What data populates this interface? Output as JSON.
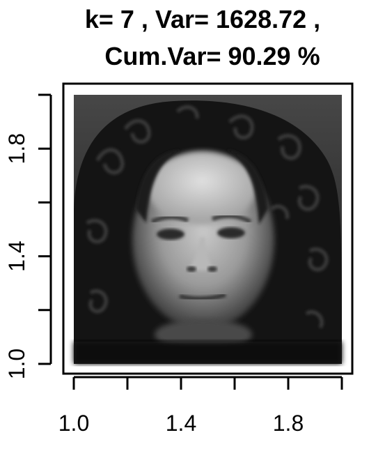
{
  "chart_data": {
    "type": "heatmap",
    "title_lines": [
      "k= 7 , Var= 1628.72 ,",
      "Cum.Var= 90.29 %"
    ],
    "xlim": [
      1.0,
      2.0
    ],
    "ylim": [
      1.0,
      2.0
    ],
    "x_ticks": [
      1.0,
      1.2,
      1.4,
      1.6,
      1.8,
      2.0
    ],
    "x_tick_labels": [
      {
        "value": 1.0,
        "label": "1.0"
      },
      {
        "value": 1.4,
        "label": "1.4"
      },
      {
        "value": 1.8,
        "label": "1.8"
      }
    ],
    "y_ticks": [
      1.0,
      1.2,
      1.4,
      1.6,
      1.8,
      2.0
    ],
    "y_tick_labels": [
      {
        "value": 1.0,
        "label": "1.0"
      },
      {
        "value": 1.4,
        "label": "1.4"
      },
      {
        "value": 1.8,
        "label": "1.8"
      }
    ],
    "image_content": "grayscale reconstructed face (eigenface) with dark curly hair",
    "colors": {
      "axis": "#000000",
      "background": "#ffffff"
    }
  }
}
